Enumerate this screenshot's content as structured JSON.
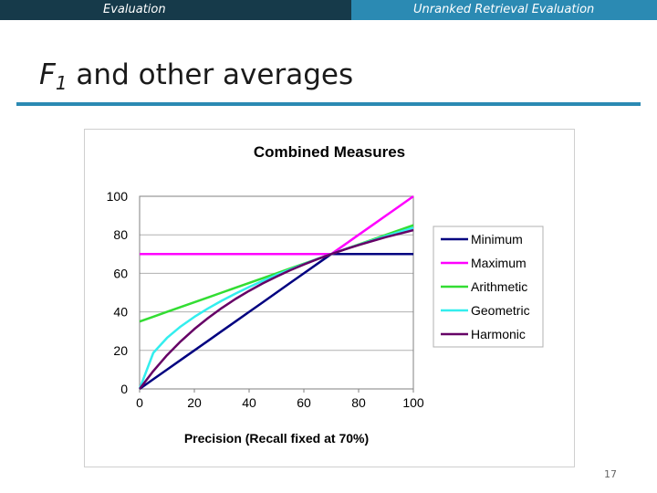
{
  "header": {
    "left_label": "Evaluation",
    "right_label": "Unranked Retrieval Evaluation"
  },
  "slide": {
    "title_f": "F",
    "title_sub": "1",
    "title_rest": " and other averages",
    "page_number": "17"
  },
  "colors": {
    "header_dark": "#163a4a",
    "header_light": "#2b8ab3",
    "rule": "#2b8ab3"
  },
  "chart_data": {
    "type": "line",
    "title": "Combined Measures",
    "xlabel": "Precision (Recall fixed at 70%)",
    "ylabel": "",
    "xlim": [
      0,
      100
    ],
    "ylim": [
      0,
      100
    ],
    "x_ticks": [
      "0",
      "20",
      "40",
      "60",
      "80",
      "100"
    ],
    "y_ticks": [
      "0",
      "20",
      "40",
      "60",
      "80",
      "100"
    ],
    "grid": "horizontal",
    "legend_position": "right",
    "x": [
      0,
      5,
      10,
      15,
      20,
      25,
      30,
      35,
      40,
      45,
      50,
      55,
      60,
      65,
      70,
      75,
      80,
      85,
      90,
      95,
      100
    ],
    "series": [
      {
        "name": "Minimum",
        "color": "#000080",
        "values": [
          0,
          5,
          10,
          15,
          20,
          25,
          30,
          35,
          40,
          45,
          50,
          55,
          60,
          65,
          70,
          70,
          70,
          70,
          70,
          70,
          70
        ]
      },
      {
        "name": "Maximum",
        "color": "#ff00ff",
        "values": [
          70,
          70,
          70,
          70,
          70,
          70,
          70,
          70,
          70,
          70,
          70,
          70,
          70,
          70,
          70,
          75,
          80,
          85,
          90,
          95,
          100
        ]
      },
      {
        "name": "Arithmetic",
        "color": "#33dd33",
        "values": [
          35,
          37.5,
          40,
          42.5,
          45,
          47.5,
          50,
          52.5,
          55,
          57.5,
          60,
          62.5,
          65,
          67.5,
          70,
          72.5,
          75,
          77.5,
          80,
          82.5,
          85
        ]
      },
      {
        "name": "Geometric",
        "color": "#33eeee",
        "values": [
          0,
          18.7,
          26.5,
          32.4,
          37.4,
          41.8,
          45.8,
          49.5,
          52.9,
          56.1,
          59.2,
          62.0,
          64.8,
          67.5,
          70,
          72.5,
          74.8,
          77.1,
          79.4,
          81.5,
          83.7
        ]
      },
      {
        "name": "Harmonic",
        "color": "#660066",
        "values": [
          0,
          9.3,
          17.5,
          24.7,
          31.1,
          36.8,
          42.0,
          46.7,
          50.9,
          54.8,
          58.3,
          61.6,
          64.6,
          67.4,
          70,
          72.4,
          74.7,
          76.8,
          78.8,
          80.6,
          82.4
        ]
      }
    ]
  }
}
